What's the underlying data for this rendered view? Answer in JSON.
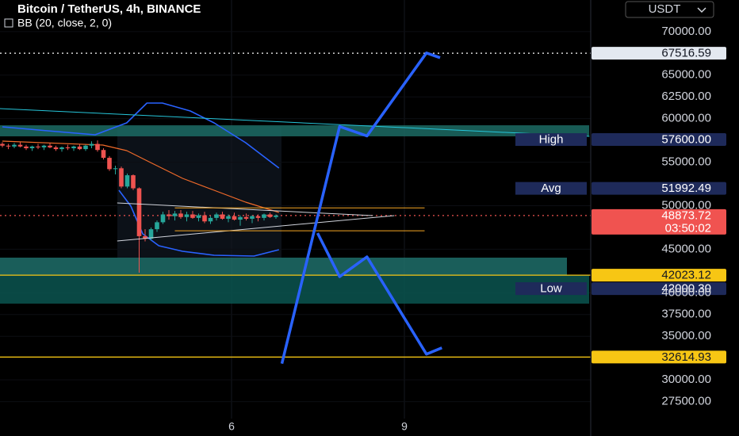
{
  "header": {
    "title": "Bitcoin / TetherUS, 4h, BINANCE",
    "indicator": "BB (20, close, 2, 0)",
    "currency": "USDT"
  },
  "chart_data": {
    "type": "candlestick",
    "ylim": [
      25550,
      73630
    ],
    "yticks": [
      {
        "value": 70000,
        "label": "70000.00"
      },
      {
        "value": 65000,
        "label": "65000.00"
      },
      {
        "value": 62500,
        "label": "62500.00"
      },
      {
        "value": 60000,
        "label": "60000.00"
      },
      {
        "value": 55000,
        "label": "55000.00"
      },
      {
        "value": 50000,
        "label": "50000.00"
      },
      {
        "value": 45000,
        "label": "45000.00"
      },
      {
        "value": 40000,
        "label": "40000.00"
      },
      {
        "value": 37500,
        "label": "37500.00"
      },
      {
        "value": 35000,
        "label": "35000.00"
      },
      {
        "value": 30000,
        "label": "30000.00"
      },
      {
        "value": 27500,
        "label": "27500.00"
      }
    ],
    "x_labels": [
      "6",
      "9"
    ],
    "candles": {
      "up_color": "#26a69a",
      "down_color": "#ef5350",
      "open": [
        57100,
        56900,
        56800,
        57000,
        56800,
        56600,
        56800,
        56700,
        56900,
        56700,
        56500,
        56700,
        56600,
        56800,
        56500,
        56900,
        57100,
        56400,
        55500,
        54200,
        54300,
        52200,
        53500,
        52000,
        46500,
        46200,
        47300,
        48100,
        49000,
        48800,
        49100,
        48700,
        49000,
        48600,
        48900,
        48200,
        48600,
        49000,
        48500,
        48800,
        48400,
        48700,
        48500,
        48800,
        48600,
        49000,
        48700
      ],
      "high": [
        57300,
        57100,
        57200,
        57300,
        57000,
        56900,
        57100,
        57000,
        57200,
        56900,
        56800,
        57000,
        56900,
        57100,
        57000,
        57400,
        57500,
        56600,
        55700,
        54600,
        54500,
        53700,
        53600,
        52100,
        47300,
        47500,
        48300,
        49300,
        49500,
        49400,
        49500,
        49300,
        49400,
        49100,
        49300,
        48800,
        49200,
        49300,
        49000,
        49200,
        48900,
        49100,
        48900,
        49000,
        49100,
        49200,
        49000
      ],
      "low": [
        56700,
        56500,
        56600,
        56700,
        56400,
        56300,
        56500,
        56400,
        56600,
        56300,
        56200,
        56400,
        56300,
        56400,
        56300,
        56600,
        56200,
        55300,
        54000,
        53600,
        52000,
        52000,
        51800,
        42300,
        45900,
        46000,
        47000,
        47900,
        48400,
        48300,
        48500,
        48200,
        48500,
        48200,
        48000,
        47900,
        48300,
        48400,
        48100,
        48300,
        47700,
        48300,
        48000,
        48200,
        48300,
        48600,
        48500
      ],
      "close": [
        56900,
        56800,
        57000,
        56800,
        56600,
        56800,
        56700,
        56900,
        56700,
        56500,
        56700,
        56600,
        56800,
        56500,
        56900,
        57100,
        56400,
        55500,
        54200,
        54300,
        52200,
        53500,
        52000,
        46500,
        46200,
        47300,
        48100,
        49000,
        48800,
        49100,
        48700,
        49000,
        48600,
        48900,
        48200,
        48600,
        49000,
        48500,
        48800,
        48400,
        48700,
        48500,
        48800,
        48600,
        49000,
        48700,
        48874
      ]
    },
    "lines": [
      {
        "x": [
          0,
          7.6,
          15.6,
          20.9,
          24.3,
          26.9,
          31.6,
          35.6,
          40.9,
          46.5
        ],
        "values": [
          59060,
          58605,
          58150,
          59515,
          61790,
          61790,
          60880,
          59515,
          57240,
          54325
        ],
        "color": "#2962ff",
        "width": 1.6
      },
      {
        "x": [
          19.6,
          21.6,
          23.6,
          26.3,
          30.3,
          35.6,
          42.3,
          46.5
        ],
        "values": [
          51775,
          49955,
          46767,
          45400,
          44765,
          44310,
          44217,
          44945
        ],
        "color": "#2962ff",
        "width": 1.6
      },
      {
        "x": [
          0,
          16.9,
          20.9,
          24.9,
          30.3,
          35.6,
          40.9,
          46.5
        ],
        "values": [
          57420,
          56966,
          56330,
          54963,
          53140,
          51775,
          50410,
          49225
        ],
        "color": "#f06a2a",
        "width": 1.2
      },
      {
        "x": [
          -0.4,
          98.7
        ],
        "values": [
          61155,
          57968
        ],
        "color": "#26c6da",
        "width": 1
      },
      {
        "x": [
          19.3,
          62.3
        ],
        "values": [
          50318,
          48860
        ],
        "color": "#d1d4dc",
        "width": 1
      },
      {
        "x": [
          19.3,
          65.9
        ],
        "values": [
          45947,
          48860
        ],
        "color": "#d1d4dc",
        "width": 1
      },
      {
        "x": [
          29,
          71
        ],
        "values": [
          49750,
          49750
        ],
        "color": "#f5a623",
        "width": 1
      },
      {
        "x": [
          29,
          71
        ],
        "values": [
          47120,
          47120
        ],
        "color": "#f5a623",
        "width": 1
      },
      {
        "x": [
          47,
          56.7,
          61.3,
          71.3,
          73.6
        ],
        "values": [
          31864,
          59104,
          58014,
          67548,
          67004
        ],
        "color": "#2962ff",
        "width": 3.5
      },
      {
        "x": [
          53,
          56.7,
          61.3,
          71.3,
          73.9
        ],
        "values": [
          46846,
          41852,
          44122,
          32954,
          33680
        ],
        "color": "#2962ff",
        "width": 3.5
      }
    ],
    "zones": [
      {
        "from": 57970,
        "to": 59240,
        "color": "#1c6b64"
      },
      {
        "from": 42000,
        "to": 44035,
        "color": "#1f6f6a"
      },
      {
        "from": 38750,
        "to": 42000,
        "color": "#0b5550"
      }
    ],
    "levels": [
      {
        "price": {
          "value": 67516.59,
          "label": "67516.59"
        },
        "color": "#e3e8f0",
        "text_color": "#131722",
        "line": "dotted",
        "line_color": "#ffffff"
      },
      {
        "price": {
          "value": 57600,
          "label": "57600.00"
        },
        "tag": "High",
        "color": "#1e2a5a",
        "text_color": "#ffffff"
      },
      {
        "price": {
          "value": 51992.49,
          "label": "51992.49"
        },
        "tag": "Avg",
        "color": "#1e2a5a",
        "text_color": "#ffffff"
      },
      {
        "price": {
          "value": 48873.72,
          "label": "48873.72"
        },
        "countdown": "03:50:02",
        "color": "#f05350",
        "text_color": "#ffffff",
        "line": "dotted",
        "line_color": "#f05350"
      },
      {
        "price": {
          "value": 42023.12,
          "label": "42023.12"
        },
        "color": "#f7c614",
        "text_color": "#131722",
        "line": "solid",
        "line_color": "#f7c614"
      },
      {
        "price": {
          "value": 42000.3,
          "label": "42000.30"
        },
        "tag": "Low",
        "color": "#1e2a5a",
        "text_color": "#ffffff"
      },
      {
        "price": {
          "value": 32614.93,
          "label": "32614.93"
        },
        "color": "#f7c614",
        "text_color": "#131722",
        "line": "solid",
        "line_color": "#f7c614"
      }
    ]
  }
}
